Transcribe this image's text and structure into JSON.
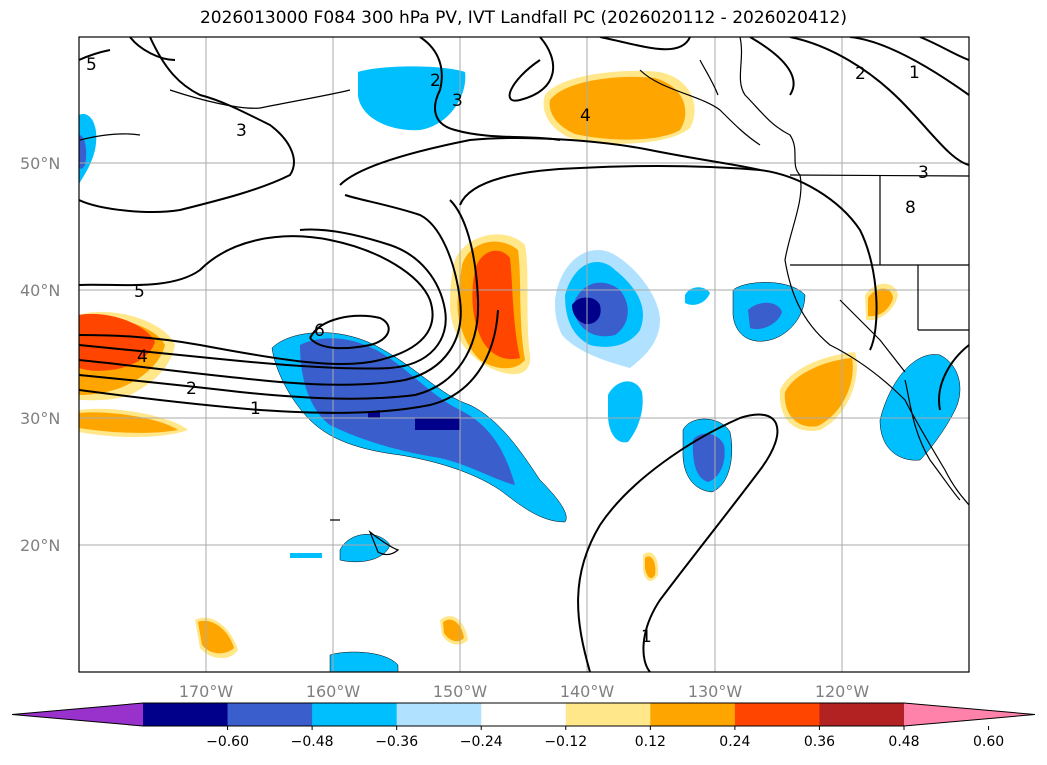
{
  "title": "2026013000 F084 300 hPa PV, IVT Landfall PC (2026020112 - 2026020412)",
  "map": {
    "lat_labels": [
      "50°N",
      "40°N",
      "30°N",
      "20°N"
    ],
    "lon_labels": [
      "170°W",
      "160°W",
      "150°W",
      "140°W",
      "130°W",
      "120°W"
    ],
    "contour_labels": [
      "5",
      "4",
      "2",
      "1",
      "3",
      "6",
      "2",
      "3",
      "1",
      "2",
      "3",
      "1"
    ],
    "shading_colors": {
      "strong_neg": "#00008b",
      "mod_neg": "#3a5fcd",
      "weak_neg": "#00bfff",
      "very_weak_neg": "#b0e2ff",
      "very_weak_pos": "#ffe78a",
      "weak_pos": "#ffa500",
      "mod_pos": "#ff4500"
    }
  },
  "colorbar": {
    "ticks": [
      "−0.60",
      "−0.48",
      "−0.36",
      "−0.24",
      "−0.12",
      "0.12",
      "0.24",
      "0.36",
      "0.48",
      "0.60"
    ],
    "colors": [
      "#9932cc",
      "#00008b",
      "#3a5fcd",
      "#00bfff",
      "#b0e2ff",
      "#ffffff",
      "#ffe78a",
      "#ffa500",
      "#ff4500",
      "#b22222",
      "#ff82ab"
    ]
  }
}
